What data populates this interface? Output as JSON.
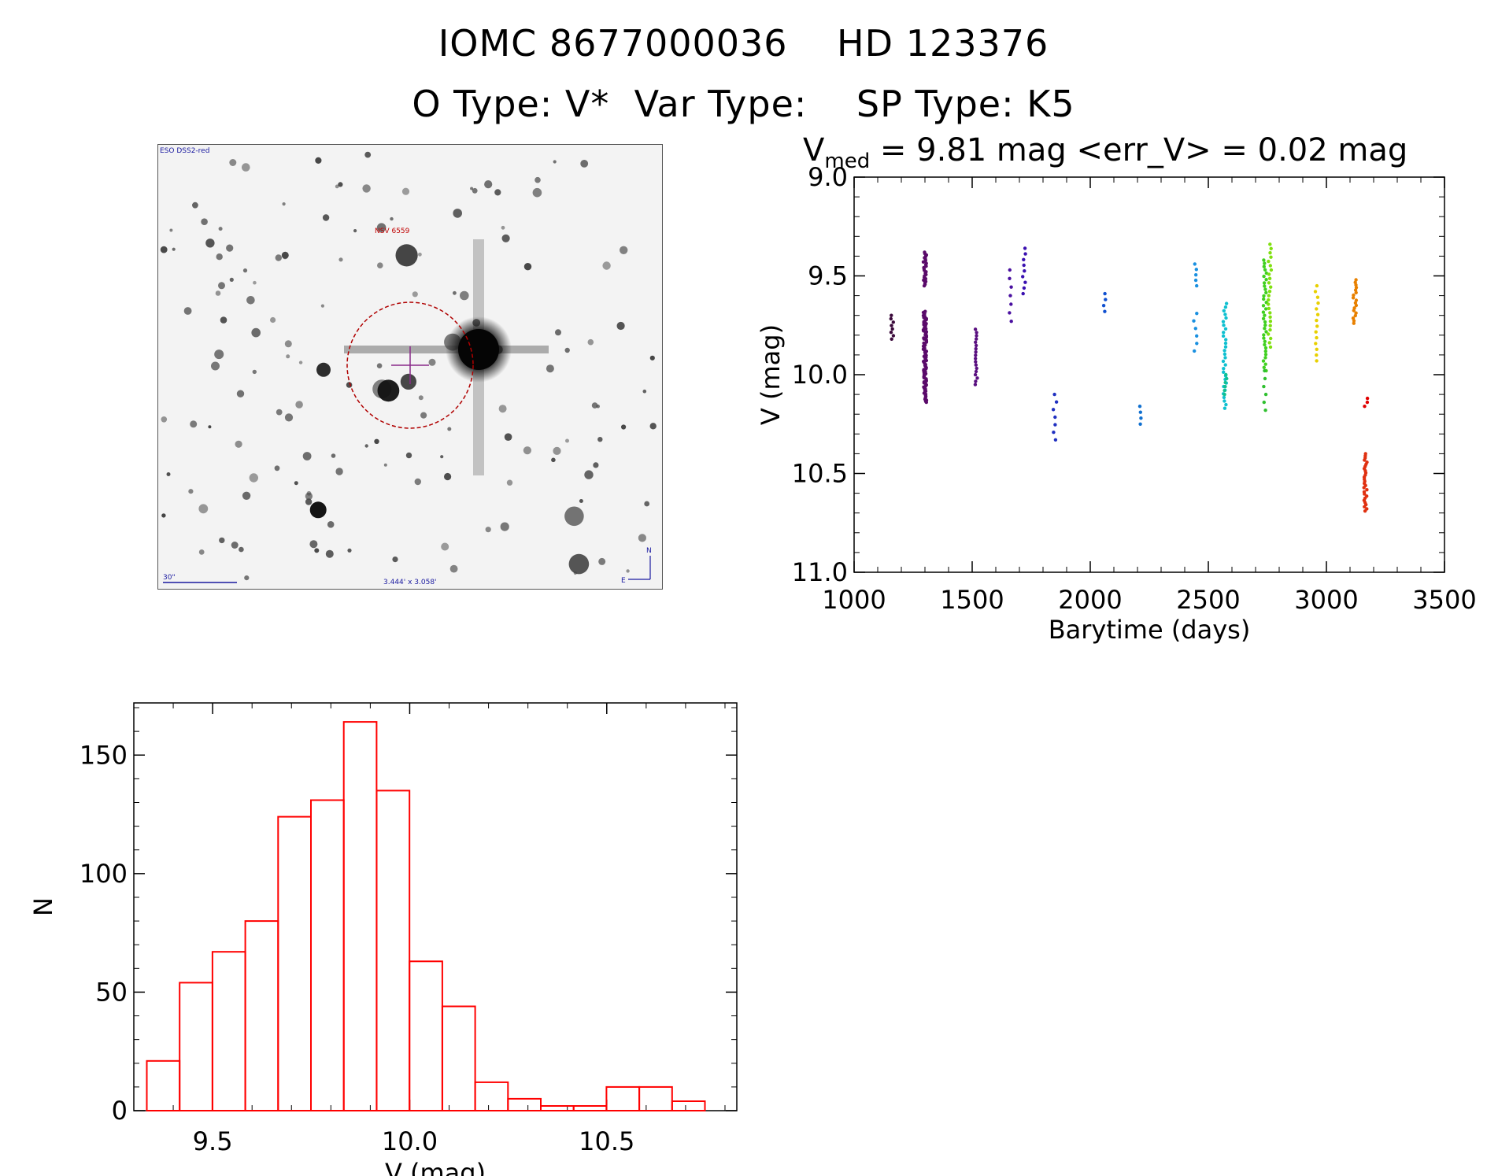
{
  "header": {
    "line1": "IOMC 8677000036    HD 123376",
    "line2": "O Type: V*  Var Type:    SP Type: K5"
  },
  "finder": {
    "top_left_label": "ESO DSS2-red",
    "object_label": "NSV 6559",
    "scale_label": "30\"",
    "size_label": "3.444' x 3.058'",
    "compass_n": "N",
    "compass_e": "E",
    "marker_color": "#b00000",
    "cross_color": "#8a2b8a"
  },
  "lightcurve": {
    "title_main": "V",
    "title_sub": "med",
    "title_rest": " = 9.81 mag <err_V> = 0.02 mag"
  },
  "chart_data": [
    {
      "type": "scatter",
      "title": "Vmed = 9.81 mag <err_V> = 0.02 mag",
      "xlabel": "Barytime (days)",
      "ylabel": "V (mag)",
      "xlim": [
        1000,
        3500
      ],
      "ylim": [
        11.0,
        9.0
      ],
      "y_inverted": true,
      "x_ticks": [
        1000,
        1500,
        2000,
        2500,
        3000,
        3500
      ],
      "y_ticks": [
        "9.0",
        "9.5",
        "10.0",
        "10.5",
        "11.0"
      ],
      "groups": [
        {
          "x": 1160,
          "ymin": 9.7,
          "ymax": 9.82,
          "n": 8,
          "color": "#3b0a3b"
        },
        {
          "x": 1300,
          "ymin": 9.38,
          "ymax": 9.55,
          "n": 25,
          "color": "#5a0a6a"
        },
        {
          "x": 1300,
          "ymin": 9.68,
          "ymax": 10.14,
          "n": 90,
          "color": "#5a0a6a"
        },
        {
          "x": 1520,
          "ymin": 9.77,
          "ymax": 10.05,
          "n": 18,
          "color": "#5a1080"
        },
        {
          "x": 1665,
          "ymin": 9.47,
          "ymax": 9.73,
          "n": 7,
          "color": "#4a10a0"
        },
        {
          "x": 1720,
          "ymin": 9.36,
          "ymax": 9.59,
          "n": 9,
          "color": "#3a10b0"
        },
        {
          "x": 1850,
          "ymin": 10.1,
          "ymax": 10.33,
          "n": 7,
          "color": "#2030c0"
        },
        {
          "x": 2060,
          "ymin": 9.59,
          "ymax": 9.68,
          "n": 4,
          "color": "#1050d0"
        },
        {
          "x": 2210,
          "ymin": 10.16,
          "ymax": 10.25,
          "n": 4,
          "color": "#1070d0"
        },
        {
          "x": 2445,
          "ymin": 9.44,
          "ymax": 9.55,
          "n": 5,
          "color": "#1a90e0"
        },
        {
          "x": 2445,
          "ymin": 9.69,
          "ymax": 9.88,
          "n": 6,
          "color": "#1a90e0"
        },
        {
          "x": 2570,
          "ymin": 9.64,
          "ymax": 10.17,
          "n": 30,
          "color": "#10c0d0"
        },
        {
          "x": 2575,
          "ymin": 10.0,
          "ymax": 10.1,
          "n": 6,
          "color": "#10c090"
        },
        {
          "x": 2740,
          "ymin": 9.42,
          "ymax": 9.98,
          "n": 35,
          "color": "#40d020"
        },
        {
          "x": 2760,
          "ymin": 9.34,
          "ymax": 9.86,
          "n": 25,
          "color": "#80e010"
        },
        {
          "x": 2740,
          "ymin": 9.98,
          "ymax": 10.18,
          "n": 6,
          "color": "#30c030"
        },
        {
          "x": 2960,
          "ymin": 9.55,
          "ymax": 9.93,
          "n": 14,
          "color": "#e8d000"
        },
        {
          "x": 3120,
          "ymin": 9.52,
          "ymax": 9.74,
          "n": 18,
          "color": "#e88000"
        },
        {
          "x": 3165,
          "ymin": 10.4,
          "ymax": 10.69,
          "n": 28,
          "color": "#e03010"
        },
        {
          "x": 3168,
          "ymin": 10.12,
          "ymax": 10.16,
          "n": 3,
          "color": "#e00000"
        }
      ]
    },
    {
      "type": "bar",
      "title": "",
      "xlabel": "V (mag)",
      "ylabel": "N",
      "xlim": [
        9.3,
        10.83
      ],
      "ylim": [
        0,
        172
      ],
      "x_ticks": [
        "9.5",
        "10.0",
        "10.5"
      ],
      "y_ticks": [
        0,
        50,
        100,
        150
      ],
      "bin_width": 0.0833,
      "bin_start": 9.333,
      "values": [
        21,
        54,
        67,
        80,
        124,
        131,
        164,
        135,
        63,
        44,
        12,
        5,
        2,
        2,
        10,
        10,
        4
      ],
      "bar_color": "#ff0000"
    }
  ]
}
